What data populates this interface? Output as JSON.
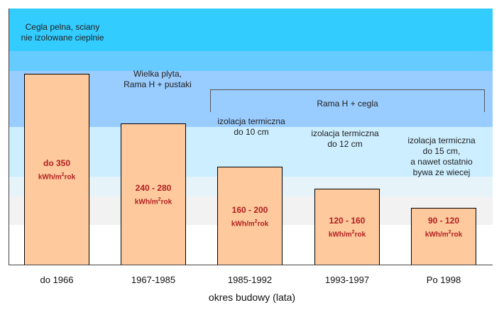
{
  "chart_data": {
    "type": "bar",
    "title": "",
    "xlabel": "okres budowy (lata)",
    "ylabel": "",
    "ylim": [
      0,
      470
    ],
    "categories": [
      "do 1966",
      "1967-1985",
      "1985-1992",
      "1993-1997",
      "Po 1998"
    ],
    "values": [
      350,
      260,
      180,
      140,
      105
    ],
    "bar_labels": [
      "do 350",
      "240 - 280",
      "160 - 200",
      "120 - 160",
      "90 - 120"
    ],
    "unit_label": "kWh/m",
    "unit_sup": "2",
    "unit_suffix": "rok",
    "background_bands_colors": [
      "#33ccff",
      "#66ccff",
      "#99ccff",
      "#cceeff",
      "#e6f4fa",
      "#f2f2f2",
      "#ffffff"
    ],
    "bar_color": "#fdc99d",
    "label_color": "#b22020",
    "annotations": [
      "Cegla pelna, sciany\nnie izolowane cieplnie",
      "Wielka plyta,\nRama H + pustaki",
      "izolacja termiczna\ndo 10 cm",
      "izolacja termiczna\ndo 12 cm",
      "izolacja termiczna\ndo 15 cm,\na nawet ostatnio\nbywa ze wiecej"
    ],
    "bracket_label": "Rama H + cegla"
  }
}
